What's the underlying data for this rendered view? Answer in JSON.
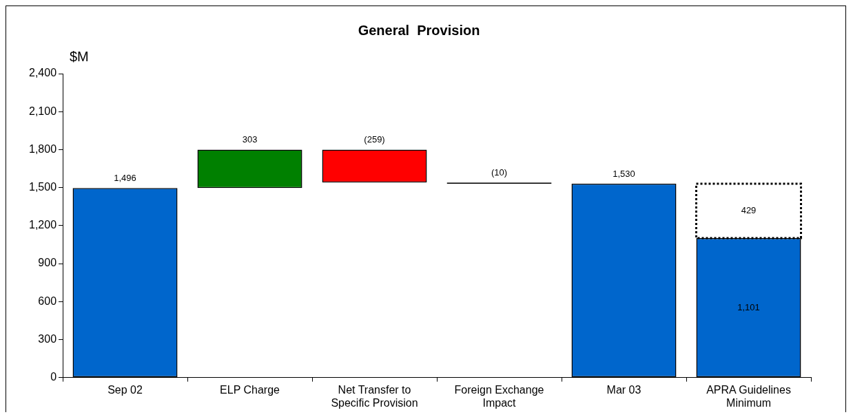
{
  "chart_data": {
    "type": "bar",
    "title": "General  Provision",
    "ylabel": "$M",
    "categories": [
      "Sep 02",
      "ELP Charge",
      "Net Transfer to Specific Provision",
      "Foreign Exchange Impact",
      "Mar 03",
      "APRA Guidelines Minimum"
    ],
    "series": [
      {
        "colors": [
          "#0066cc",
          "#008000",
          "#ff0000",
          "#000000",
          "#0066cc",
          "#0066cc"
        ],
        "base": [
          0,
          1496,
          1799,
          1540,
          0,
          0
        ],
        "values": [
          1496,
          303,
          -259,
          -10,
          1530,
          1101
        ],
        "value_labels": [
          "1,496",
          "303",
          "(259)",
          "(10)",
          "1,530",
          "1,101"
        ]
      },
      {
        "color": "#ffffff",
        "line_style": "dotted",
        "base": [
          null,
          null,
          null,
          null,
          null,
          1101
        ],
        "values": [
          null,
          null,
          null,
          null,
          null,
          429
        ],
        "value_labels": [
          null,
          null,
          null,
          null,
          null,
          "429"
        ]
      }
    ],
    "ylim": [
      0,
      2400
    ],
    "yticks": [
      0,
      {
        "value": 300,
        "label": "300"
      },
      {
        "value": 600,
        "label": "600"
      },
      {
        "value": 900,
        "label": "900"
      },
      {
        "value": 1200,
        "label": "1,200"
      },
      {
        "value": 1500,
        "label": "1,500"
      },
      {
        "value": 1800,
        "label": "1,800"
      },
      {
        "value": 2100,
        "label": "2,100"
      },
      {
        "value": 2400,
        "label": "2,400"
      }
    ],
    "grid": false,
    "legend": false
  }
}
